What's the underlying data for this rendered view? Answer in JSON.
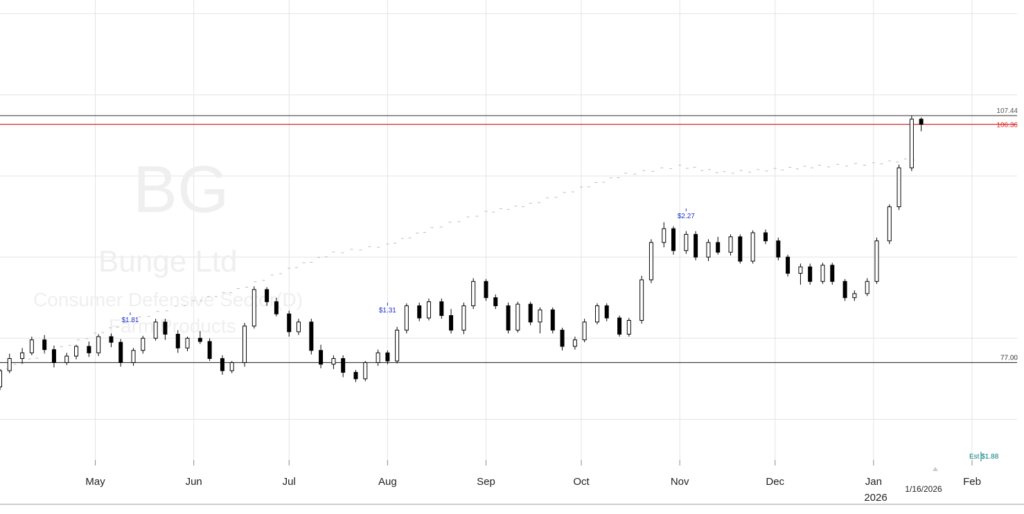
{
  "watermark": {
    "symbol": "BG",
    "company": "Bunge Ltd",
    "sector": "Consumer Defensive Sector(D)",
    "industry": "Farm Products"
  },
  "x_axis": {
    "months": [
      "May",
      "Jun",
      "Jul",
      "Aug",
      "Sep",
      "Oct",
      "Nov",
      "Dec",
      "Jan",
      "Feb"
    ],
    "year_label": "2026",
    "current_date": "1/16/2026"
  },
  "price_levels": [
    {
      "label": "107.44",
      "value": 107.44,
      "color": "#555555"
    },
    {
      "label": "106.36",
      "value": 106.36,
      "color": "#dd2222"
    },
    {
      "label": "77.00",
      "value": 77.0,
      "color": "#333333"
    }
  ],
  "dividends": [
    {
      "label": "$1.81",
      "date": "2025-05-12"
    },
    {
      "label": "$1.31",
      "date": "2025-08-01"
    },
    {
      "label": "$2.27",
      "date": "2025-11-03"
    }
  ],
  "estimate": {
    "label": "Est $1.88",
    "date": "2026-02-04"
  },
  "colors": {
    "up": "#ffffff",
    "down": "#000000",
    "wick": "#000000",
    "rs": "#bbbbbb",
    "grid": "#e3e3e3"
  },
  "chart_data": {
    "type": "candlestick",
    "title": "BG",
    "series": [
      {
        "name": "Bunge Ltd",
        "ohlc": [
          [
            "2025-04-01",
            74,
            76.2,
            73.6,
            76
          ],
          [
            "2025-04-04",
            76,
            78.1,
            75.7,
            77.5
          ],
          [
            "2025-04-08",
            77.5,
            78.8,
            76.9,
            78.2
          ],
          [
            "2025-04-11",
            78.2,
            80.2,
            77.9,
            79.8
          ],
          [
            "2025-04-15",
            79.8,
            80.4,
            78.2,
            78.6
          ],
          [
            "2025-04-18",
            78.6,
            79.1,
            76.4,
            77
          ],
          [
            "2025-04-22",
            77,
            78.2,
            76.7,
            77.8
          ],
          [
            "2025-04-25",
            77.8,
            79.2,
            77.4,
            79
          ],
          [
            "2025-04-29",
            79,
            79.6,
            77.7,
            78.2
          ],
          [
            "2025-05-02",
            78.2,
            80.5,
            77.8,
            80.2
          ],
          [
            "2025-05-06",
            80.2,
            80.6,
            78.9,
            79.5
          ],
          [
            "2025-05-09",
            79.5,
            79.9,
            76.5,
            77
          ],
          [
            "2025-05-13",
            77,
            78.8,
            76.6,
            78.5
          ],
          [
            "2025-05-16",
            78.5,
            80.3,
            78.1,
            80
          ],
          [
            "2025-05-20",
            80,
            82.4,
            79.7,
            82
          ],
          [
            "2025-05-23",
            82,
            82.4,
            79.8,
            80.5
          ],
          [
            "2025-05-27",
            80.5,
            81,
            78.2,
            78.8
          ],
          [
            "2025-05-30",
            78.8,
            80.2,
            78.4,
            80
          ],
          [
            "2025-06-03",
            80,
            80.9,
            79.3,
            79.6
          ],
          [
            "2025-06-06",
            79.6,
            80,
            77.2,
            77.5
          ],
          [
            "2025-06-10",
            77.5,
            77.9,
            75.5,
            76
          ],
          [
            "2025-06-13",
            76,
            77.2,
            75.7,
            77
          ],
          [
            "2025-06-17",
            77,
            81.9,
            76.5,
            81.5
          ],
          [
            "2025-06-20",
            81.5,
            86.4,
            81.2,
            86
          ],
          [
            "2025-06-24",
            86,
            86.3,
            84,
            84.5
          ],
          [
            "2025-06-27",
            84.5,
            85,
            82.7,
            83
          ],
          [
            "2025-07-01",
            83,
            83.4,
            80.2,
            80.8
          ],
          [
            "2025-07-04",
            80.8,
            82.4,
            80.4,
            82
          ],
          [
            "2025-07-08",
            82,
            82.4,
            78,
            78.5
          ],
          [
            "2025-07-11",
            78.5,
            79.2,
            76.3,
            76.8
          ],
          [
            "2025-07-15",
            76.8,
            77.9,
            76.2,
            77.5
          ],
          [
            "2025-07-18",
            77.5,
            77.9,
            75.2,
            75.8
          ],
          [
            "2025-07-22",
            75.8,
            76.1,
            74.6,
            75
          ],
          [
            "2025-07-25",
            75,
            77.2,
            74.7,
            77
          ],
          [
            "2025-07-29",
            77,
            78.6,
            76.6,
            78.2
          ],
          [
            "2025-08-01",
            78.2,
            78.5,
            76.8,
            77.2
          ],
          [
            "2025-08-04",
            77.2,
            81.4,
            76.9,
            81
          ],
          [
            "2025-08-07",
            81,
            84.3,
            80.6,
            84
          ],
          [
            "2025-08-11",
            84,
            84.4,
            82.1,
            82.5
          ],
          [
            "2025-08-14",
            82.5,
            84.9,
            82.2,
            84.5
          ],
          [
            "2025-08-18",
            84.5,
            84.9,
            82.4,
            82.8
          ],
          [
            "2025-08-21",
            82.8,
            83.6,
            80.6,
            81
          ],
          [
            "2025-08-25",
            81,
            84.4,
            80.5,
            84
          ],
          [
            "2025-08-28",
            84,
            87.4,
            83.6,
            87
          ],
          [
            "2025-09-01",
            87,
            87.3,
            84.6,
            85
          ],
          [
            "2025-09-04",
            85,
            85.4,
            83.6,
            84
          ],
          [
            "2025-09-08",
            84,
            84.4,
            80.6,
            81
          ],
          [
            "2025-09-11",
            81,
            84.5,
            80.7,
            84.2
          ],
          [
            "2025-09-15",
            84.2,
            84.5,
            81.6,
            82
          ],
          [
            "2025-09-18",
            82,
            83.8,
            80.6,
            83.5
          ],
          [
            "2025-09-22",
            83.5,
            83.8,
            80.6,
            81
          ],
          [
            "2025-09-25",
            81,
            81.3,
            78.5,
            79
          ],
          [
            "2025-09-29",
            79,
            80.2,
            78.6,
            79.8
          ],
          [
            "2025-10-02",
            79.8,
            82.4,
            79.5,
            82
          ],
          [
            "2025-10-06",
            82,
            84.3,
            81.7,
            84
          ],
          [
            "2025-10-09",
            84,
            84.3,
            82.1,
            82.5
          ],
          [
            "2025-10-13",
            82.5,
            82.8,
            80.2,
            80.5
          ],
          [
            "2025-10-16",
            80.5,
            82.5,
            80.2,
            82.2
          ],
          [
            "2025-10-20",
            82.2,
            87.7,
            81.8,
            87.2
          ],
          [
            "2025-10-23",
            87.2,
            92.2,
            86.8,
            91.8
          ],
          [
            "2025-10-27",
            91.8,
            94.3,
            91.2,
            93.5
          ],
          [
            "2025-10-30",
            93.5,
            93.8,
            90.3,
            90.8
          ],
          [
            "2025-11-03",
            90.8,
            93.2,
            90.4,
            92.8
          ],
          [
            "2025-11-06",
            92.8,
            93.2,
            89.6,
            90
          ],
          [
            "2025-11-10",
            90,
            92.2,
            89.5,
            91.8
          ],
          [
            "2025-11-13",
            91.8,
            92.5,
            90.3,
            90.6
          ],
          [
            "2025-11-17",
            90.6,
            92.8,
            90.2,
            92.5
          ],
          [
            "2025-11-20",
            92.5,
            92.8,
            89.2,
            89.5
          ],
          [
            "2025-11-24",
            89.5,
            93.3,
            89.2,
            93
          ],
          [
            "2025-11-28",
            93,
            93.4,
            91.6,
            92
          ],
          [
            "2025-12-02",
            92,
            92.4,
            89.6,
            90
          ],
          [
            "2025-12-05",
            90,
            90.3,
            87.6,
            88
          ],
          [
            "2025-12-09",
            88,
            89.2,
            86.6,
            88.8
          ],
          [
            "2025-12-12",
            88.8,
            89.2,
            86.6,
            87
          ],
          [
            "2025-12-16",
            87,
            89.3,
            86.7,
            89
          ],
          [
            "2025-12-19",
            89,
            89.3,
            86.6,
            87
          ],
          [
            "2025-12-23",
            87,
            87.3,
            84.6,
            85
          ],
          [
            "2025-12-26",
            85,
            85.9,
            84.6,
            85.5
          ],
          [
            "2025-12-30",
            85.5,
            87.4,
            85.2,
            87
          ],
          [
            "2026-01-02",
            87,
            92.4,
            86.7,
            92
          ],
          [
            "2026-01-06",
            92,
            96.5,
            91.6,
            96.2
          ],
          [
            "2026-01-09",
            96.2,
            101.4,
            95.8,
            101
          ],
          [
            "2026-01-13",
            101,
            107.44,
            100.6,
            107
          ],
          [
            "2026-01-16",
            107,
            107.2,
            105.5,
            106.36
          ]
        ]
      },
      {
        "name": "Relative Strength",
        "values": [
          [
            "2025-04-01",
            76
          ],
          [
            "2025-04-15",
            78
          ],
          [
            "2025-05-01",
            80.5
          ],
          [
            "2025-05-15",
            82.5
          ],
          [
            "2025-06-01",
            84.5
          ],
          [
            "2025-06-15",
            86
          ],
          [
            "2025-07-01",
            88.5
          ],
          [
            "2025-07-15",
            90.5
          ],
          [
            "2025-08-01",
            91.5
          ],
          [
            "2025-08-15",
            93.5
          ],
          [
            "2025-09-01",
            95.5
          ],
          [
            "2025-09-15",
            96.5
          ],
          [
            "2025-10-01",
            98.5
          ],
          [
            "2025-10-15",
            100.2
          ],
          [
            "2025-11-01",
            101.2
          ],
          [
            "2025-11-15",
            100.4
          ],
          [
            "2025-12-01",
            100.8
          ],
          [
            "2025-12-15",
            101.2
          ],
          [
            "2026-01-01",
            101.5
          ],
          [
            "2026-01-16",
            102.2
          ]
        ]
      }
    ],
    "ylim": [
      65,
      121
    ],
    "grid": true,
    "legend": "none"
  }
}
